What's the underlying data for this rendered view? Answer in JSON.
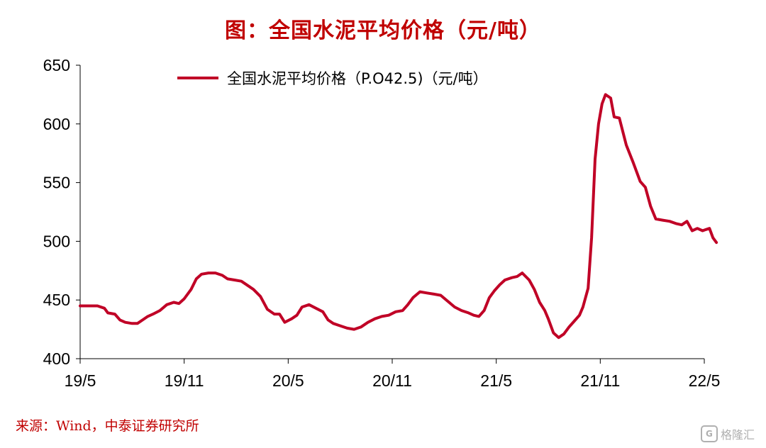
{
  "title": "图：全国水泥平均价格（元/吨）",
  "source": "来源：Wind，中泰证券研究所",
  "watermark": "格隆汇",
  "colors": {
    "series": "#c00026",
    "title": "#c00000",
    "axis": "#000000"
  },
  "chart_data": {
    "type": "line",
    "title": "图：全国水泥平均价格（元/吨）",
    "xlabel": "",
    "ylabel": "",
    "ylim": [
      400,
      650
    ],
    "yticks": [
      400,
      450,
      500,
      550,
      600,
      650
    ],
    "xlim": [
      0,
      36
    ],
    "xticks": [
      {
        "label": "19/5",
        "x": 0
      },
      {
        "label": "19/11",
        "x": 6
      },
      {
        "label": "20/5",
        "x": 12
      },
      {
        "label": "20/11",
        "x": 18
      },
      {
        "label": "21/5",
        "x": 24
      },
      {
        "label": "21/11",
        "x": 30
      },
      {
        "label": "22/5",
        "x": 36
      }
    ],
    "grid": false,
    "legend": "top",
    "series": [
      {
        "name": "全国水泥平均价格（P.O42.5)（元/吨）",
        "color": "#c00026",
        "points": [
          [
            0.0,
            445
          ],
          [
            0.6,
            445
          ],
          [
            1.0,
            445
          ],
          [
            1.4,
            443
          ],
          [
            1.6,
            439
          ],
          [
            2.0,
            438
          ],
          [
            2.3,
            433
          ],
          [
            2.6,
            431
          ],
          [
            3.0,
            430
          ],
          [
            3.3,
            430
          ],
          [
            3.6,
            433
          ],
          [
            3.9,
            436
          ],
          [
            4.2,
            438
          ],
          [
            4.6,
            441
          ],
          [
            5.0,
            446
          ],
          [
            5.4,
            448
          ],
          [
            5.7,
            447
          ],
          [
            6.0,
            451
          ],
          [
            6.4,
            459
          ],
          [
            6.7,
            468
          ],
          [
            7.0,
            472
          ],
          [
            7.4,
            473
          ],
          [
            7.8,
            473
          ],
          [
            8.2,
            471
          ],
          [
            8.5,
            468
          ],
          [
            8.9,
            467
          ],
          [
            9.3,
            466
          ],
          [
            9.7,
            462
          ],
          [
            10.0,
            459
          ],
          [
            10.4,
            453
          ],
          [
            10.8,
            442
          ],
          [
            11.2,
            438
          ],
          [
            11.5,
            438
          ],
          [
            11.8,
            431
          ],
          [
            12.2,
            434
          ],
          [
            12.5,
            437
          ],
          [
            12.8,
            444
          ],
          [
            13.2,
            446
          ],
          [
            13.6,
            443
          ],
          [
            14.0,
            440
          ],
          [
            14.3,
            433
          ],
          [
            14.6,
            430
          ],
          [
            15.0,
            428
          ],
          [
            15.4,
            426
          ],
          [
            15.8,
            425
          ],
          [
            16.2,
            427
          ],
          [
            16.6,
            431
          ],
          [
            17.0,
            434
          ],
          [
            17.4,
            436
          ],
          [
            17.8,
            437
          ],
          [
            18.2,
            440
          ],
          [
            18.6,
            441
          ],
          [
            18.9,
            446
          ],
          [
            19.2,
            452
          ],
          [
            19.6,
            457
          ],
          [
            20.0,
            456
          ],
          [
            20.4,
            455
          ],
          [
            20.8,
            454
          ],
          [
            21.2,
            449
          ],
          [
            21.6,
            444
          ],
          [
            22.0,
            441
          ],
          [
            22.4,
            439
          ],
          [
            22.7,
            437
          ],
          [
            23.0,
            436
          ],
          [
            23.3,
            441
          ],
          [
            23.6,
            452
          ],
          [
            23.9,
            458
          ],
          [
            24.2,
            463
          ],
          [
            24.5,
            467
          ],
          [
            24.9,
            469
          ],
          [
            25.2,
            470
          ],
          [
            25.5,
            473
          ],
          [
            25.9,
            467
          ],
          [
            26.2,
            459
          ],
          [
            26.5,
            448
          ],
          [
            26.8,
            441
          ],
          [
            27.0,
            434
          ],
          [
            27.3,
            422
          ],
          [
            27.6,
            418
          ],
          [
            27.9,
            421
          ],
          [
            28.2,
            427
          ],
          [
            28.5,
            432
          ],
          [
            28.8,
            437
          ],
          [
            29.0,
            444
          ],
          [
            29.3,
            460
          ],
          [
            29.5,
            503
          ],
          [
            29.7,
            570
          ],
          [
            29.9,
            600
          ],
          [
            30.1,
            617
          ],
          [
            30.3,
            625
          ],
          [
            30.6,
            622
          ],
          [
            30.8,
            606
          ],
          [
            31.1,
            605
          ],
          [
            31.5,
            582
          ],
          [
            31.9,
            567
          ],
          [
            32.3,
            551
          ],
          [
            32.6,
            546
          ],
          [
            32.9,
            530
          ],
          [
            33.2,
            519
          ],
          [
            33.6,
            518
          ],
          [
            34.0,
            517
          ],
          [
            34.4,
            515
          ],
          [
            34.7,
            514
          ],
          [
            35.0,
            517
          ],
          [
            35.3,
            509
          ],
          [
            35.6,
            511
          ],
          [
            35.9,
            509
          ],
          [
            36.1,
            510
          ],
          [
            36.3,
            511
          ],
          [
            36.5,
            503
          ],
          [
            36.7,
            499
          ]
        ]
      }
    ]
  }
}
